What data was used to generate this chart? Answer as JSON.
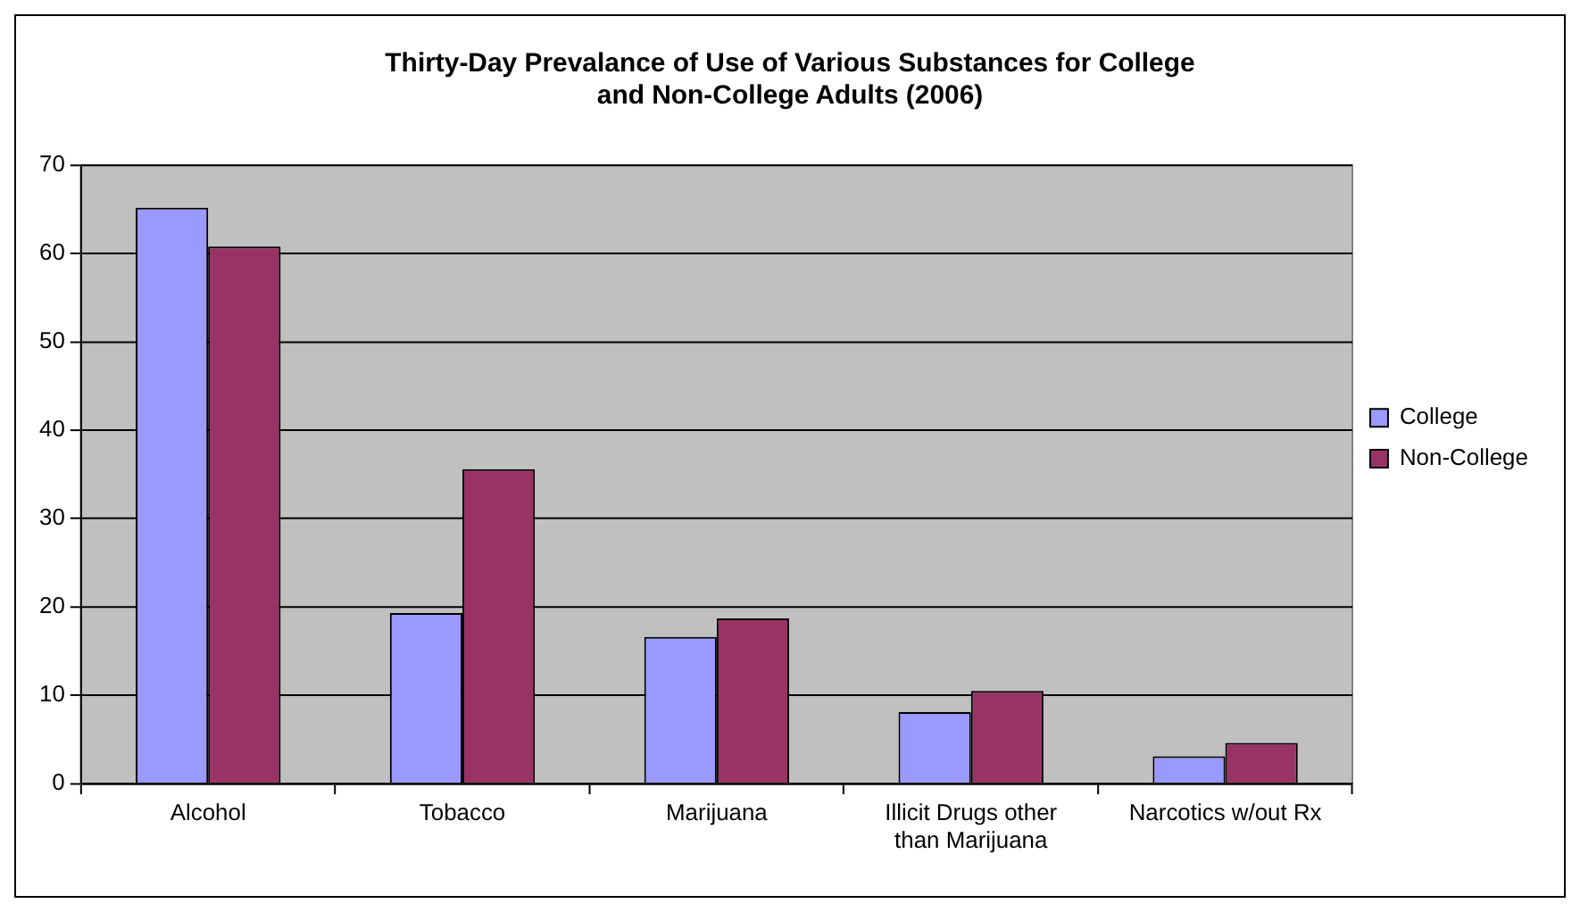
{
  "chart_data": {
    "type": "bar",
    "title": "Thirty-Day Prevalance of Use of Various Substances for College and Non-College Adults (2006)",
    "categories": [
      "Alcohol",
      "Tobacco",
      "Marijuana",
      "Illicit Drugs other than Marijuana",
      "Narcotics w/out Rx"
    ],
    "series": [
      {
        "name": "College",
        "color": "#9999ff",
        "values": [
          65.2,
          19.3,
          16.6,
          8.1,
          3.1
        ]
      },
      {
        "name": "Non-College",
        "color": "#993366",
        "values": [
          60.8,
          35.6,
          18.7,
          10.5,
          4.6
        ]
      }
    ],
    "ylim": [
      0,
      70
    ],
    "yticks": [
      0,
      10,
      20,
      30,
      40,
      50,
      60,
      70
    ],
    "grid": "y",
    "legend": "right"
  }
}
